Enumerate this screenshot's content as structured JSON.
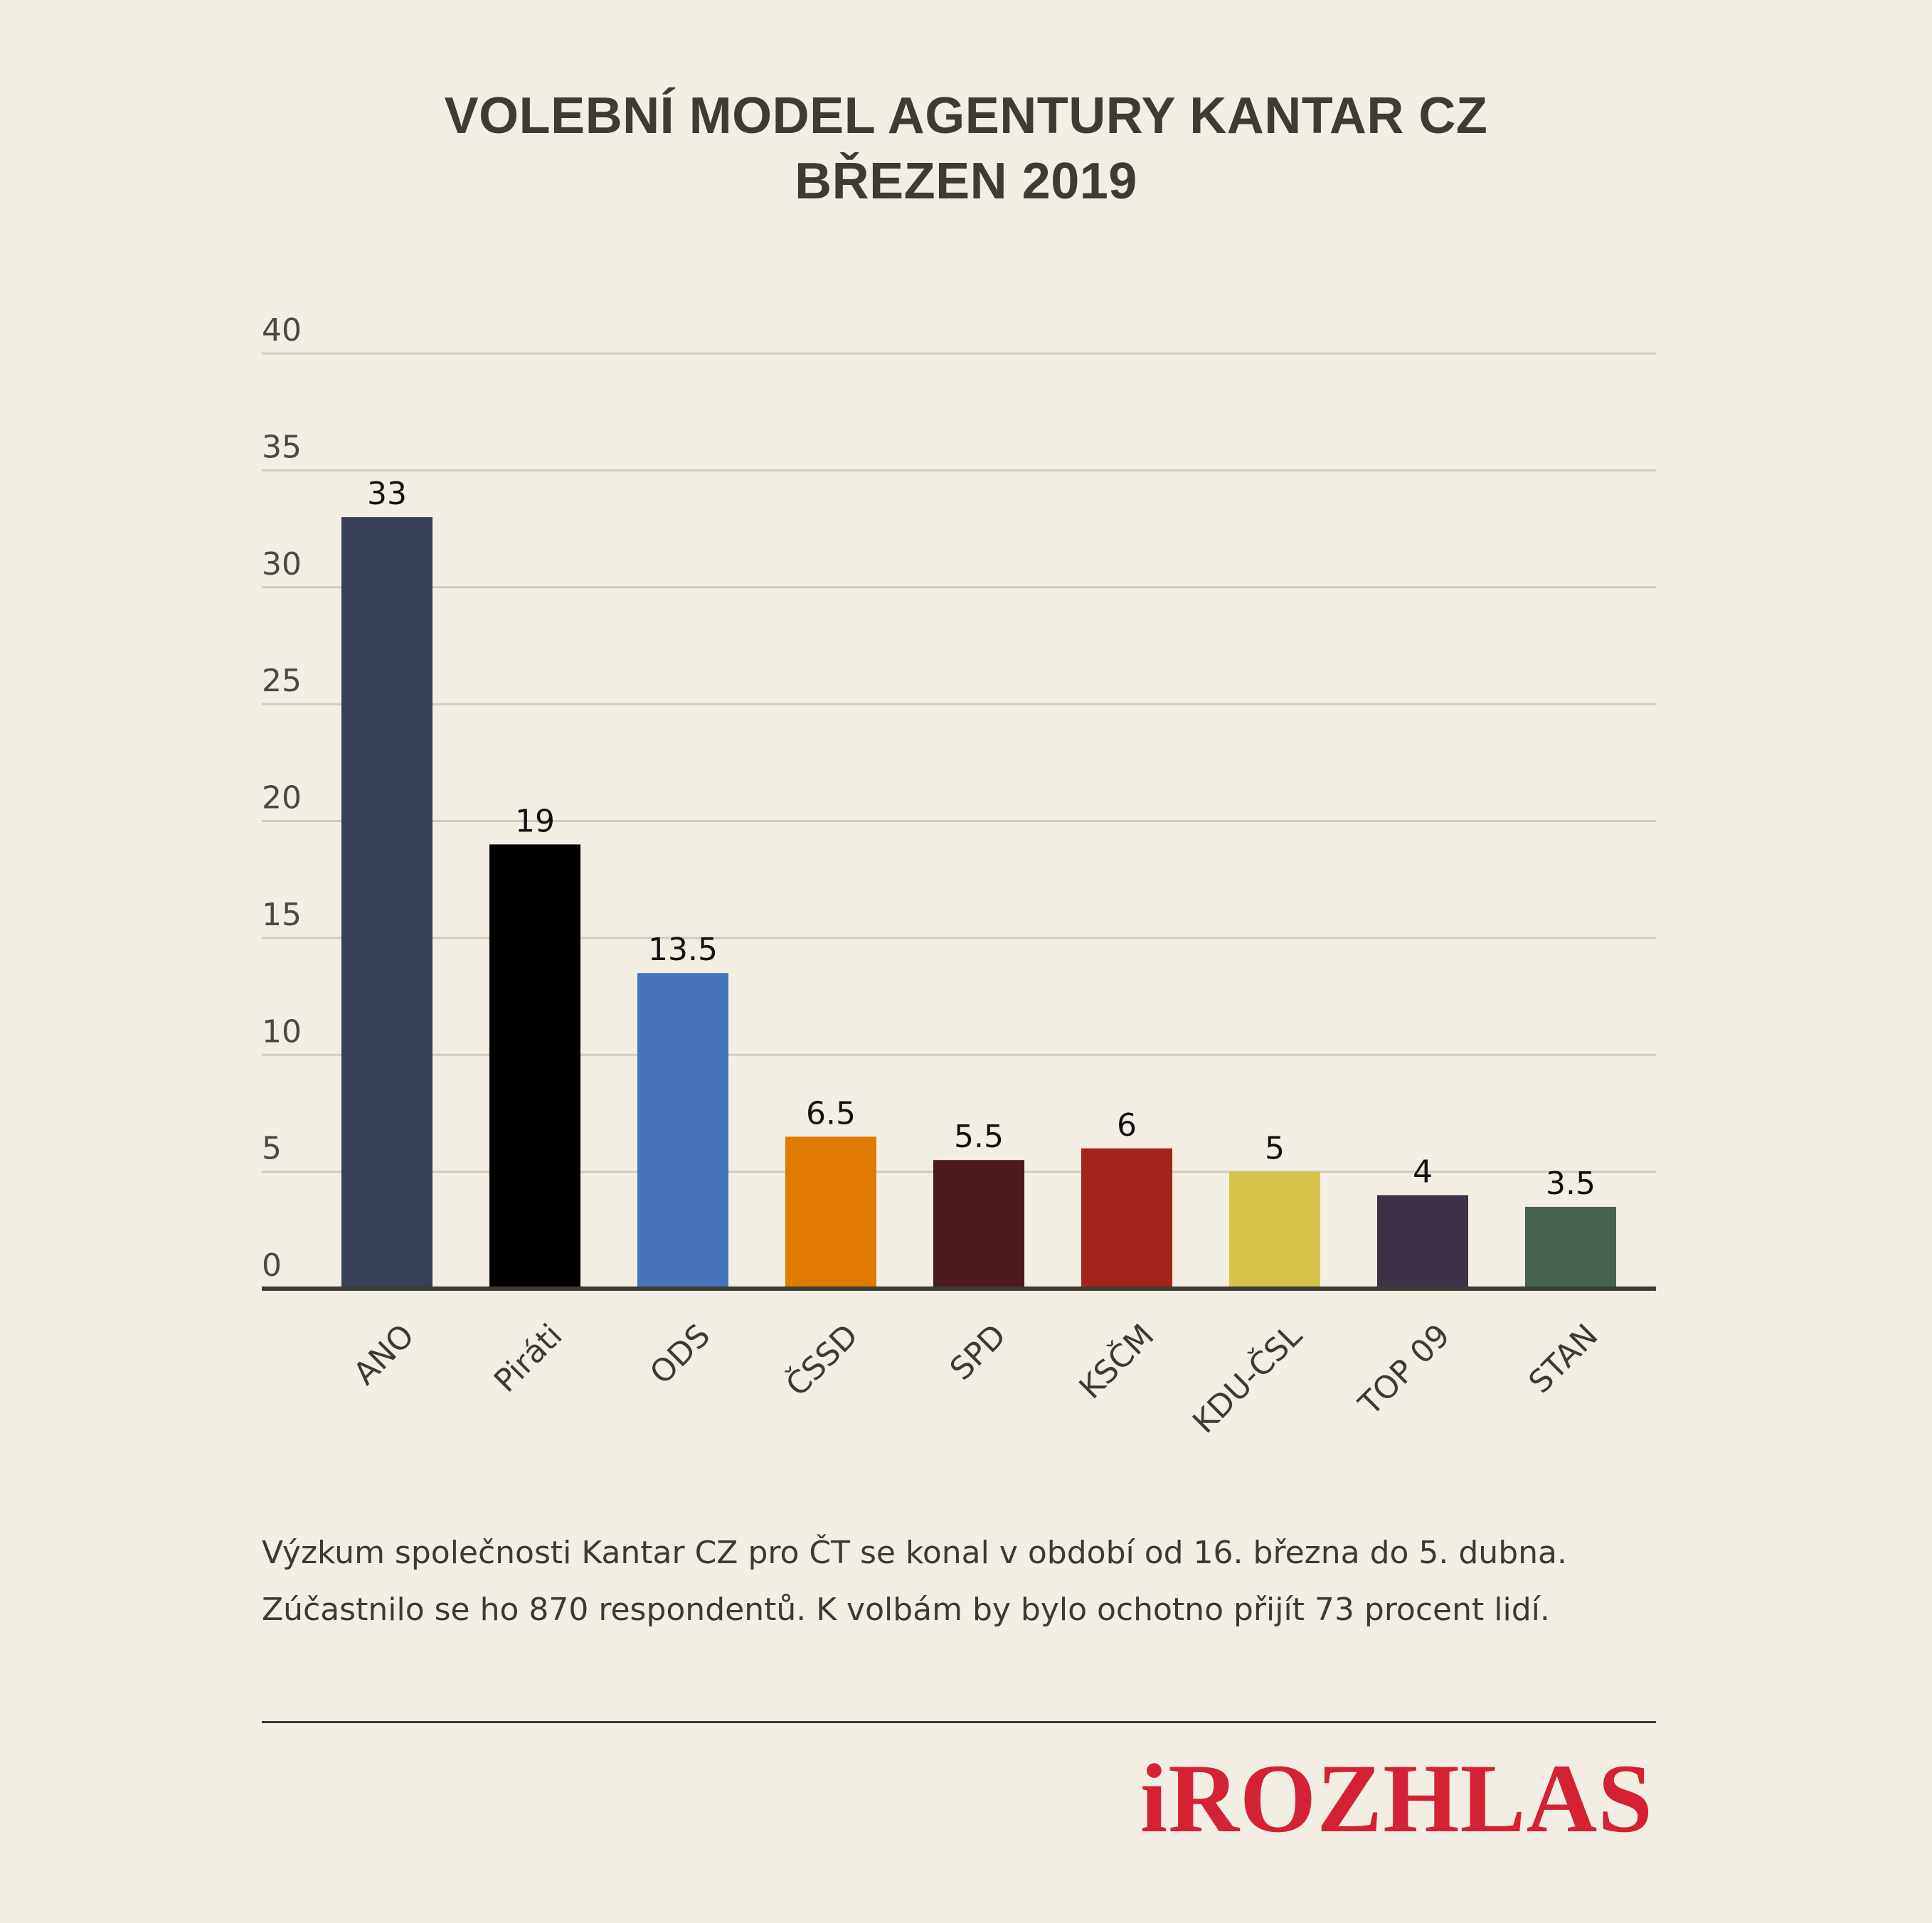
{
  "title_lines": [
    "VOLEBNÍ MODEL AGENTURY KANTAR CZ",
    "BŘEZEN 2019"
  ],
  "note_lines": [
    "Výzkum společnosti Kantar CZ pro ČT se konal v období od 16. března do 5. dubna.",
    "Zúčastnilo se ho 870 respondentů. K volbám by bylo ochotno přijít 73 procent lidí."
  ],
  "logo_text": "iROZHLAS",
  "colors": {
    "background": "#f2eee3",
    "gridline": "#cfcbbf",
    "axis": "#3b3a33",
    "logo": "#d42234"
  },
  "chart_data": {
    "type": "bar",
    "title": "VOLEBNÍ MODEL AGENTURY KANTAR CZ BŘEZEN 2019",
    "xlabel": "",
    "ylabel": "",
    "ylim": [
      0,
      40
    ],
    "yticks": [
      0,
      5,
      10,
      15,
      20,
      25,
      30,
      35,
      40
    ],
    "grid": true,
    "categories": [
      "ANO",
      "Piráti",
      "ODS",
      "ČSSD",
      "SPD",
      "KSČM",
      "KDU-ČSL",
      "TOP 09",
      "STAN"
    ],
    "values": [
      33,
      19,
      13.5,
      6.5,
      5.5,
      6,
      5,
      4,
      3.5
    ],
    "value_labels": [
      "33",
      "19",
      "13.5",
      "6.5",
      "5.5",
      "6",
      "5",
      "4",
      "3.5"
    ],
    "bar_colors": [
      "#363f55",
      "#000000",
      "#4773ba",
      "#e07b00",
      "#4b1a1d",
      "#a5231d",
      "#d6c34a",
      "#3e3046",
      "#476350"
    ]
  }
}
